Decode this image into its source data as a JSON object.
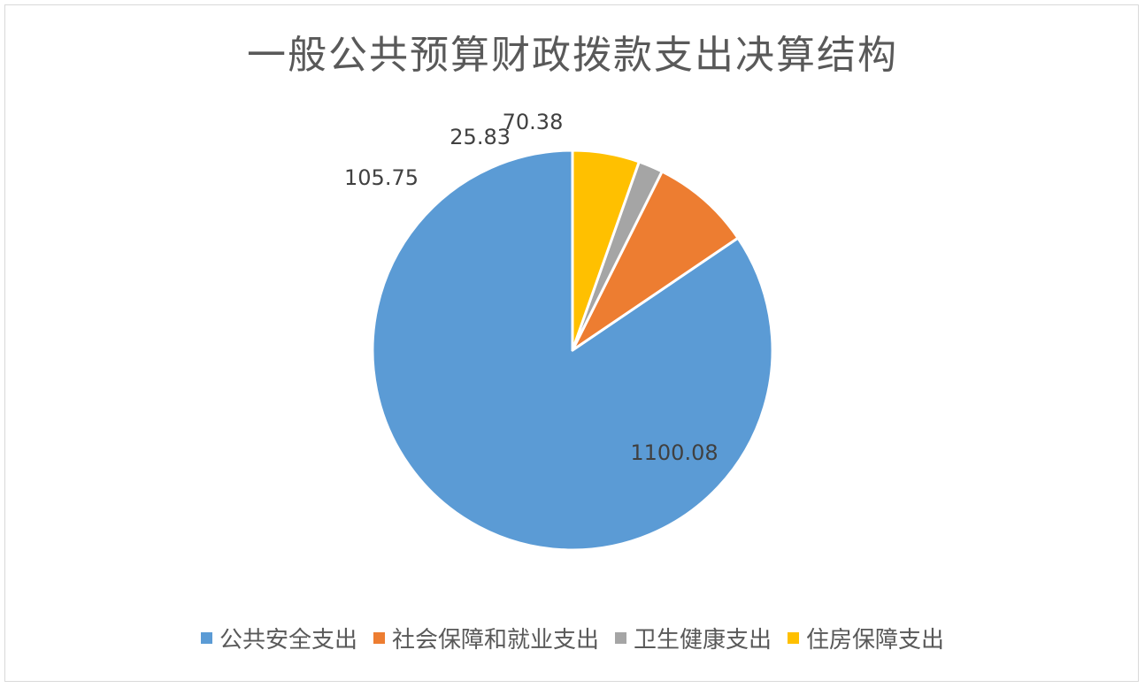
{
  "chart_data": {
    "type": "pie",
    "title": "一般公共预算财政拨款支出决算结构",
    "categories": [
      "公共安全支出",
      "社会保障和就业支出",
      "卫生健康支出",
      "住房保障支出"
    ],
    "values": [
      1100.08,
      105.75,
      25.83,
      70.38
    ],
    "labels": [
      "1100.08",
      "105.75",
      "25.83",
      "70.38"
    ],
    "colors": [
      "#5b9bd5",
      "#ed7d31",
      "#a5a5a5",
      "#ffc000"
    ],
    "legend_position": "bottom",
    "start_angle": "12-o'clock",
    "direction": "counter-clockwise"
  }
}
